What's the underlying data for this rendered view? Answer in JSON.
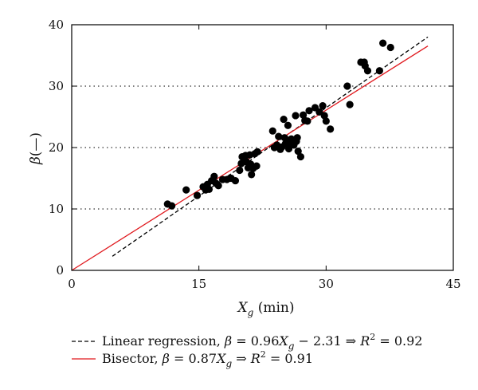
{
  "chart_data": {
    "type": "scatter",
    "title": "",
    "xlabel": {
      "main": "X",
      "sub": "g",
      "unit": " (min)"
    },
    "ylabel": {
      "main": "β",
      "unit": "(—)"
    },
    "xlim": [
      0,
      45
    ],
    "ylim": [
      0,
      40
    ],
    "xticks": [
      "0",
      "15",
      "30",
      "45"
    ],
    "yticks": [
      "0",
      "10",
      "20",
      "30",
      "40"
    ],
    "grid": "horizontal dotted",
    "legend_position": "bottom",
    "points": [
      {
        "x": 11.3,
        "y": 10.8
      },
      {
        "x": 11.8,
        "y": 10.5
      },
      {
        "x": 13.5,
        "y": 13.1
      },
      {
        "x": 14.8,
        "y": 12.2
      },
      {
        "x": 15.5,
        "y": 13.6
      },
      {
        "x": 15.8,
        "y": 13.1
      },
      {
        "x": 16.0,
        "y": 14.0
      },
      {
        "x": 16.2,
        "y": 13.2
      },
      {
        "x": 16.5,
        "y": 14.6
      },
      {
        "x": 16.8,
        "y": 15.3
      },
      {
        "x": 17.0,
        "y": 14.2
      },
      {
        "x": 17.3,
        "y": 13.8
      },
      {
        "x": 17.8,
        "y": 14.8
      },
      {
        "x": 18.3,
        "y": 14.8
      },
      {
        "x": 18.8,
        "y": 15.0
      },
      {
        "x": 19.3,
        "y": 14.6
      },
      {
        "x": 19.8,
        "y": 16.3
      },
      {
        "x": 20.0,
        "y": 17.4
      },
      {
        "x": 20.1,
        "y": 18.5
      },
      {
        "x": 20.3,
        "y": 18.2
      },
      {
        "x": 20.5,
        "y": 18.7
      },
      {
        "x": 20.6,
        "y": 17.7
      },
      {
        "x": 20.8,
        "y": 16.7
      },
      {
        "x": 21.0,
        "y": 18.8
      },
      {
        "x": 21.1,
        "y": 17.3
      },
      {
        "x": 21.2,
        "y": 15.6
      },
      {
        "x": 21.4,
        "y": 16.6
      },
      {
        "x": 21.6,
        "y": 19.0
      },
      {
        "x": 21.8,
        "y": 17.0
      },
      {
        "x": 21.9,
        "y": 19.3
      },
      {
        "x": 23.7,
        "y": 22.7
      },
      {
        "x": 23.9,
        "y": 20.0
      },
      {
        "x": 24.2,
        "y": 20.4
      },
      {
        "x": 24.4,
        "y": 21.8
      },
      {
        "x": 24.6,
        "y": 19.7
      },
      {
        "x": 24.8,
        "y": 20.1
      },
      {
        "x": 25.0,
        "y": 24.6
      },
      {
        "x": 25.1,
        "y": 21.6
      },
      {
        "x": 25.2,
        "y": 20.6
      },
      {
        "x": 25.4,
        "y": 21.2
      },
      {
        "x": 25.5,
        "y": 23.6
      },
      {
        "x": 25.6,
        "y": 19.8
      },
      {
        "x": 25.7,
        "y": 20.8
      },
      {
        "x": 25.9,
        "y": 21.4
      },
      {
        "x": 26.2,
        "y": 20.4
      },
      {
        "x": 26.4,
        "y": 25.2
      },
      {
        "x": 26.5,
        "y": 21.0
      },
      {
        "x": 26.6,
        "y": 21.6
      },
      {
        "x": 26.7,
        "y": 19.4
      },
      {
        "x": 27.0,
        "y": 18.5
      },
      {
        "x": 27.3,
        "y": 25.3
      },
      {
        "x": 27.5,
        "y": 24.4
      },
      {
        "x": 27.8,
        "y": 24.3
      },
      {
        "x": 28.0,
        "y": 26.0
      },
      {
        "x": 28.7,
        "y": 26.5
      },
      {
        "x": 29.2,
        "y": 25.8
      },
      {
        "x": 29.6,
        "y": 26.8
      },
      {
        "x": 29.8,
        "y": 25.2
      },
      {
        "x": 30.0,
        "y": 24.3
      },
      {
        "x": 30.5,
        "y": 23.0
      },
      {
        "x": 32.5,
        "y": 30.0
      },
      {
        "x": 32.8,
        "y": 27.0
      },
      {
        "x": 34.1,
        "y": 33.9
      },
      {
        "x": 34.5,
        "y": 33.9
      },
      {
        "x": 34.6,
        "y": 33.3
      },
      {
        "x": 34.9,
        "y": 32.5
      },
      {
        "x": 36.3,
        "y": 32.5
      },
      {
        "x": 36.7,
        "y": 37.0
      },
      {
        "x": 37.6,
        "y": 36.3
      }
    ],
    "series": [
      {
        "name": "Linear regression",
        "style": "dashed",
        "color": "#000000",
        "x": [
          4.8,
          42.0
        ],
        "y": [
          2.3,
          38.0
        ],
        "legend_text": {
          "prefix": "Linear regression, ",
          "sym": "β",
          "eq": " = 0.96",
          "var": "X",
          "sub": "g",
          "rest": " − 2.31 ⇒ ",
          "r": "R",
          "sup": "2",
          "val": " = 0.92"
        }
      },
      {
        "name": "Bisector",
        "style": "solid",
        "color": "#e0191e",
        "x": [
          0,
          42.0
        ],
        "y": [
          0,
          36.54
        ],
        "legend_text": {
          "prefix": "Bisector, ",
          "sym": "β",
          "eq": " = 0.87",
          "var": "X",
          "sub": "g",
          "rest": " ⇒ ",
          "r": "R",
          "sup": "2",
          "val": " = 0.91"
        }
      }
    ]
  }
}
